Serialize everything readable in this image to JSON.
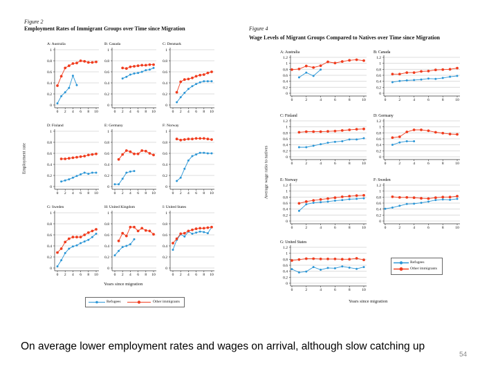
{
  "colors": {
    "refugees": "#2b96d6",
    "other_immigrants": "#f03c1e"
  },
  "slide": {
    "caption": "On average lower employment rates and wages on arrival, although slow catching up",
    "page_number": "54"
  },
  "chart_data": [
    {
      "type": "line",
      "figure_label": "Figure 2",
      "title": "Employment Rates of Immigrant Groups over Time since Migration",
      "xlabel": "Years since migration",
      "ylabel": "Employment rate",
      "x": [
        0,
        1,
        2,
        3,
        4,
        5,
        6,
        7,
        8,
        9,
        10
      ],
      "xticks": [
        0,
        2,
        4,
        6,
        8,
        10
      ],
      "yticks": [
        "0",
        "0.2",
        "0.4",
        "0.6",
        "0.8",
        "1"
      ],
      "ylim": [
        0,
        1
      ],
      "grid": true,
      "legend": [
        "Refugees",
        "Other immigrants"
      ],
      "legend_placement": "bottom",
      "panels": [
        {
          "label": "A: Australia",
          "series": [
            {
              "name": "Refugees",
              "values": [
                0.03,
                0.16,
                0.23,
                0.31,
                0.53,
                0.36,
                null,
                null,
                null,
                null,
                null
              ]
            },
            {
              "name": "Other immigrants",
              "values": [
                0.35,
                0.52,
                0.67,
                0.71,
                0.75,
                0.76,
                0.8,
                0.79,
                0.77,
                0.77,
                0.78
              ]
            }
          ]
        },
        {
          "label": "B: Canada",
          "series": [
            {
              "name": "Refugees",
              "values": [
                null,
                null,
                0.48,
                0.51,
                0.55,
                0.57,
                0.58,
                0.6,
                0.63,
                0.64,
                0.67
              ]
            },
            {
              "name": "Other immigrants",
              "values": [
                null,
                null,
                0.67,
                0.66,
                0.69,
                0.7,
                0.71,
                0.72,
                0.72,
                0.73,
                0.73
              ]
            }
          ]
        },
        {
          "label": "C: Denmark",
          "series": [
            {
              "name": "Refugees",
              "values": [
                null,
                0.05,
                0.14,
                0.22,
                0.29,
                0.34,
                0.38,
                0.41,
                0.43,
                0.43,
                0.43
              ]
            },
            {
              "name": "Other immigrants",
              "values": [
                null,
                0.23,
                0.42,
                0.46,
                0.47,
                0.49,
                0.52,
                0.54,
                0.55,
                0.58,
                0.6
              ]
            }
          ]
        },
        {
          "label": "D: Finland",
          "series": [
            {
              "name": "Refugees",
              "values": [
                null,
                0.09,
                0.11,
                0.13,
                0.16,
                0.19,
                0.22,
                0.25,
                0.23,
                0.25,
                0.25
              ]
            },
            {
              "name": "Other immigrants",
              "values": [
                null,
                0.5,
                0.5,
                0.51,
                0.52,
                0.53,
                0.54,
                0.55,
                0.57,
                0.58,
                0.59
              ]
            }
          ]
        },
        {
          "label": "E: Germany",
          "series": [
            {
              "name": "Refugees",
              "values": [
                0.04,
                0.04,
                0.14,
                0.25,
                0.27,
                0.28,
                null,
                null,
                null,
                null,
                null
              ]
            },
            {
              "name": "Other immigrants",
              "values": [
                null,
                0.49,
                0.58,
                0.65,
                0.63,
                0.59,
                0.59,
                0.65,
                0.64,
                0.6,
                0.57
              ]
            }
          ]
        },
        {
          "label": "F: Norway",
          "series": [
            {
              "name": "Refugees",
              "values": [
                null,
                0.1,
                0.16,
                0.32,
                0.47,
                0.55,
                0.58,
                0.61,
                0.61,
                0.6,
                0.6
              ]
            },
            {
              "name": "Other immigrants",
              "values": [
                null,
                0.86,
                0.84,
                0.85,
                0.86,
                0.86,
                0.87,
                0.87,
                0.87,
                0.86,
                0.85
              ]
            }
          ]
        },
        {
          "label": "G: Sweden",
          "series": [
            {
              "name": "Refugees",
              "values": [
                0.03,
                0.14,
                0.27,
                0.35,
                0.39,
                0.41,
                0.45,
                0.48,
                0.51,
                0.56,
                0.62
              ]
            },
            {
              "name": "Other immigrants",
              "values": [
                0.28,
                0.35,
                0.47,
                0.53,
                0.56,
                0.56,
                0.56,
                0.6,
                0.64,
                0.67,
                0.7
              ]
            }
          ]
        },
        {
          "label": "H: United Kingdom",
          "series": [
            {
              "name": "Refugees",
              "values": [
                0.23,
                0.31,
                0.38,
                0.4,
                0.43,
                0.52,
                null,
                null,
                null,
                null,
                null
              ]
            },
            {
              "name": "Other immigrants",
              "values": [
                null,
                0.49,
                0.63,
                0.58,
                0.74,
                0.74,
                0.67,
                0.72,
                0.68,
                0.67,
                0.61
              ]
            }
          ]
        },
        {
          "label": "I: United States",
          "series": [
            {
              "name": "Refugees",
              "values": [
                0.33,
                0.51,
                0.61,
                0.57,
                0.66,
                0.62,
                0.64,
                0.66,
                0.65,
                0.63,
                0.74
              ]
            },
            {
              "name": "Other immigrants",
              "values": [
                0.45,
                0.53,
                0.62,
                0.63,
                0.67,
                0.69,
                0.71,
                0.72,
                0.72,
                0.73,
                0.74
              ]
            }
          ]
        }
      ]
    },
    {
      "type": "line",
      "figure_label": "Figure 4",
      "title": "Wage Levels of Migrant Groups Compared to Natives over Time since Migration",
      "xlabel": "Years since migration",
      "ylabel": "Average wage ratio to natives",
      "x": [
        0,
        1,
        2,
        3,
        4,
        5,
        6,
        7,
        8,
        9,
        10
      ],
      "xticks": [
        0,
        2,
        4,
        6,
        8,
        10
      ],
      "yticks": [
        "0",
        "0.2",
        "0.4",
        "0.6",
        "0.8",
        "1",
        "1.2"
      ],
      "ylim": [
        0,
        1.2
      ],
      "grid": true,
      "legend": [
        "Refugees",
        "Other immigrants"
      ],
      "legend_placement": "right",
      "panels": [
        {
          "label": "A: Australia",
          "series": [
            {
              "name": "Refugees",
              "values": [
                null,
                0.53,
                0.69,
                0.58,
                0.79,
                null,
                null,
                null,
                null,
                null,
                null
              ]
            },
            {
              "name": "Other immigrants",
              "values": [
                0.79,
                0.81,
                0.91,
                0.86,
                0.92,
                1.05,
                1.01,
                1.06,
                1.1,
                1.12,
                1.09
              ]
            }
          ]
        },
        {
          "label": "B: Canada",
          "series": [
            {
              "name": "Refugees",
              "values": [
                null,
                0.37,
                0.41,
                0.43,
                0.44,
                0.46,
                0.49,
                0.48,
                0.51,
                0.55,
                0.58
              ]
            },
            {
              "name": "Other immigrants",
              "values": [
                null,
                0.64,
                0.64,
                0.69,
                0.69,
                0.73,
                0.74,
                0.78,
                0.79,
                0.8,
                0.84
              ]
            }
          ]
        },
        {
          "label": "C: Finland",
          "series": [
            {
              "name": "Refugees",
              "values": [
                null,
                0.32,
                0.32,
                0.37,
                0.42,
                0.47,
                0.5,
                0.52,
                0.58,
                0.58,
                0.62
              ]
            },
            {
              "name": "Other immigrants",
              "values": [
                null,
                0.82,
                0.84,
                0.84,
                0.84,
                0.85,
                0.86,
                0.88,
                0.9,
                0.92,
                0.93
              ]
            }
          ]
        },
        {
          "label": "D: Germany",
          "series": [
            {
              "name": "Refugees",
              "values": [
                null,
                0.4,
                0.48,
                0.52,
                0.52,
                null,
                null,
                null,
                null,
                null,
                null
              ]
            },
            {
              "name": "Other immigrants",
              "values": [
                null,
                0.64,
                0.67,
                0.83,
                0.9,
                0.9,
                0.87,
                0.82,
                0.79,
                0.76,
                0.75
              ]
            }
          ]
        },
        {
          "label": "E: Norway",
          "series": [
            {
              "name": "Refugees",
              "values": [
                null,
                0.34,
                0.56,
                0.61,
                0.63,
                0.65,
                0.68,
                0.7,
                0.73,
                0.74,
                0.76
              ]
            },
            {
              "name": "Other immigrants",
              "values": [
                null,
                0.59,
                0.65,
                0.69,
                0.72,
                0.75,
                0.78,
                0.81,
                0.83,
                0.85,
                0.86
              ]
            }
          ]
        },
        {
          "label": "F: Sweden",
          "series": [
            {
              "name": "Refugees",
              "values": [
                0.41,
                0.45,
                0.51,
                0.57,
                0.58,
                0.61,
                0.65,
                0.7,
                0.72,
                0.71,
                0.74
              ]
            },
            {
              "name": "Other immigrants",
              "values": [
                null,
                0.81,
                0.79,
                0.79,
                0.78,
                0.76,
                0.75,
                0.78,
                0.8,
                0.8,
                0.83
              ]
            }
          ]
        },
        {
          "label": "G: United States",
          "series": [
            {
              "name": "Refugees",
              "values": [
                0.47,
                0.36,
                0.39,
                0.54,
                0.45,
                0.51,
                0.5,
                0.56,
                0.52,
                0.48,
                0.54
              ]
            },
            {
              "name": "Other immigrants",
              "values": [
                0.76,
                0.79,
                0.82,
                0.82,
                0.81,
                0.81,
                0.81,
                0.8,
                0.8,
                0.83,
                0.78
              ]
            }
          ]
        }
      ]
    }
  ]
}
